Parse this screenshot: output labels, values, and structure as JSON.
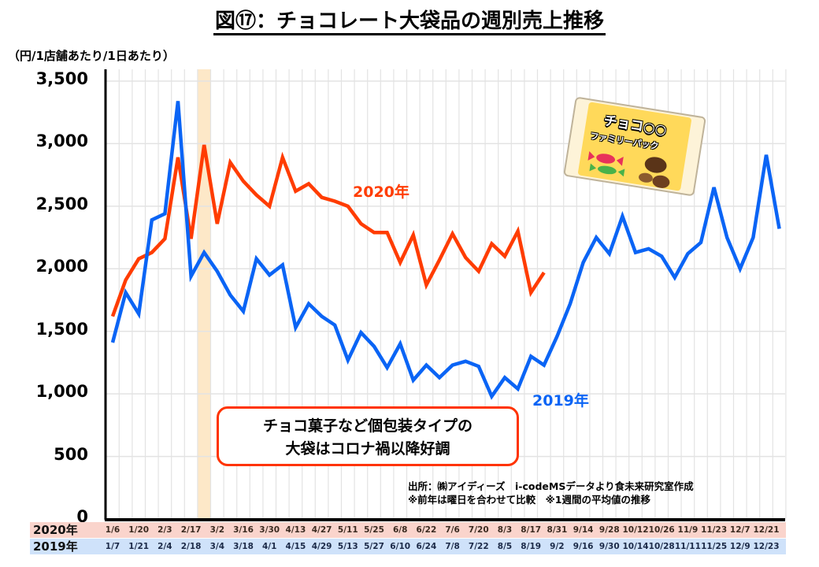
{
  "chart_data": {
    "type": "line",
    "title": "図⑰：チョコレート大袋品の週別売上推移",
    "ylabel": "（円/1店舗あたり/1日あたり）",
    "xlabel": "",
    "ylim": [
      0,
      3500
    ],
    "yticks": [
      0,
      500,
      1000,
      1500,
      2000,
      2500,
      3000,
      3500
    ],
    "ytick_labels": [
      "0",
      "500",
      "1,000",
      "1,500",
      "2,000",
      "2,500",
      "3,000",
      "3,500"
    ],
    "grid": true,
    "n_weeks": 52,
    "x_rows": [
      {
        "name": "2020年",
        "color": "#fad4cc",
        "ticks": [
          "1/6",
          "1/20",
          "2/3",
          "2/17",
          "3/2",
          "3/16",
          "3/30",
          "4/13",
          "4/27",
          "5/11",
          "5/25",
          "6/8",
          "6/22",
          "7/6",
          "7/20",
          "8/3",
          "8/17",
          "8/31",
          "9/14",
          "9/28",
          "10/12",
          "10/26",
          "11/9",
          "11/23",
          "12/7",
          "12/21"
        ]
      },
      {
        "name": "2019年",
        "color": "#cfe2fa",
        "ticks": [
          "1/7",
          "1/21",
          "2/4",
          "2/18",
          "3/4",
          "3/18",
          "4/1",
          "4/15",
          "4/29",
          "5/13",
          "5/27",
          "6/10",
          "6/24",
          "7/8",
          "7/22",
          "8/5",
          "8/19",
          "9/2",
          "9/16",
          "9/30",
          "10/14",
          "10/28",
          "11/11",
          "11/25",
          "12/9",
          "12/23"
        ]
      }
    ],
    "series": [
      {
        "name": "2020年",
        "color": "#ff3c00",
        "values": [
          1620,
          1910,
          2080,
          2130,
          2240,
          2890,
          2240,
          2990,
          2360,
          2850,
          2700,
          2590,
          2500,
          2890,
          2620,
          2680,
          2570,
          2540,
          2500,
          2360,
          2290,
          2290,
          2050,
          2270,
          1870,
          2070,
          2280,
          2090,
          1980,
          2200,
          2100,
          2300,
          1810,
          1970
        ]
      },
      {
        "name": "2019年",
        "color": "#0a64f5",
        "values": [
          1410,
          1810,
          1640,
          2390,
          2440,
          3340,
          1940,
          2130,
          1980,
          1790,
          1660,
          2080,
          1950,
          2030,
          1530,
          1720,
          1620,
          1550,
          1270,
          1490,
          1380,
          1210,
          1400,
          1110,
          1230,
          1130,
          1230,
          1260,
          1220,
          980,
          1130,
          1040,
          1300,
          1230,
          1460,
          1720,
          2050,
          2250,
          2120,
          2420,
          2130,
          2160,
          2100,
          1930,
          2120,
          2210,
          2650,
          2250,
          2000,
          2250,
          2910,
          2320
        ]
      }
    ],
    "highlight_week_index": 7,
    "highlight_color": "#fde8c8",
    "annotations": [
      {
        "text": "2020年",
        "color": "#ff3c00"
      },
      {
        "text": "2019年",
        "color": "#0a64f5"
      }
    ]
  },
  "note": {
    "line1": "チョコ菓子など個包装タイプの",
    "line2": "大袋はコロナ禍以降好調"
  },
  "source": {
    "line1": "出所：㈱アイディーズ　i-codeMSデータより食未来研究室作成",
    "line2": "※前年は曜日を合わせて比較　※1週間の平均値の推移"
  },
  "illustration": {
    "line1": "チョコ○○",
    "line2": "ファミリーパック"
  }
}
